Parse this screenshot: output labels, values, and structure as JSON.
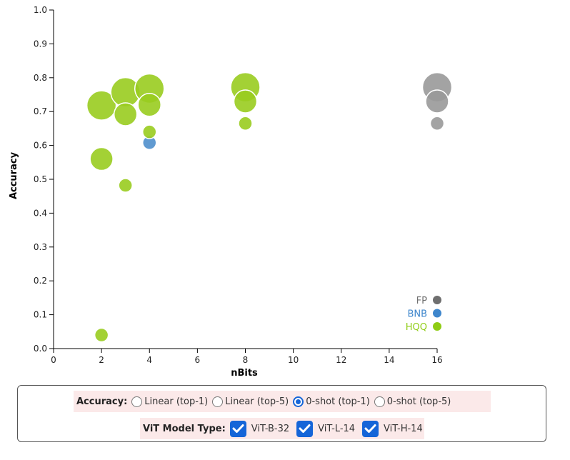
{
  "chart_data": {
    "type": "scatter",
    "xlabel": "nBits",
    "ylabel": "Accuracy",
    "xlim": [
      0,
      16
    ],
    "ylim": [
      0,
      1.0
    ],
    "x_ticks": [
      "0",
      "2",
      "4",
      "6",
      "8",
      "10",
      "12",
      "14",
      "16"
    ],
    "y_ticks": [
      "0.0",
      "0.1",
      "0.2",
      "0.3",
      "0.4",
      "0.5",
      "0.6",
      "0.7",
      "0.8",
      "0.9",
      "1.0"
    ],
    "series": [
      {
        "name": "FP",
        "color": "#999999",
        "legend_color": "#6f6f6f",
        "points": [
          {
            "x": 16,
            "y": 0.665,
            "size": 1
          },
          {
            "x": 16,
            "y": 0.73,
            "size": 2
          },
          {
            "x": 16,
            "y": 0.772,
            "size": 3
          }
        ]
      },
      {
        "name": "BNB",
        "color": "#4f8fcc",
        "legend_color": "#3e86cc",
        "points": [
          {
            "x": 4,
            "y": 0.608,
            "size": 1
          }
        ]
      },
      {
        "name": "HQQ",
        "color": "#99cc1f",
        "legend_color": "#8fcc14",
        "points": [
          {
            "x": 2,
            "y": 0.04,
            "size": 1
          },
          {
            "x": 2,
            "y": 0.56,
            "size": 2
          },
          {
            "x": 2,
            "y": 0.718,
            "size": 3
          },
          {
            "x": 3,
            "y": 0.482,
            "size": 1
          },
          {
            "x": 3,
            "y": 0.692,
            "size": 2
          },
          {
            "x": 3,
            "y": 0.757,
            "size": 3
          },
          {
            "x": 4,
            "y": 0.64,
            "size": 1
          },
          {
            "x": 4,
            "y": 0.72,
            "size": 2
          },
          {
            "x": 4,
            "y": 0.768,
            "size": 3
          },
          {
            "x": 8,
            "y": 0.665,
            "size": 1
          },
          {
            "x": 8,
            "y": 0.73,
            "size": 2
          },
          {
            "x": 8,
            "y": 0.772,
            "size": 3
          }
        ]
      }
    ],
    "legend": [
      "FP",
      "BNB",
      "HQQ"
    ]
  },
  "controls": {
    "accuracy_label": "Accuracy:",
    "accuracy_options": [
      {
        "label": "Linear (top-1)",
        "checked": false
      },
      {
        "label": "Linear (top-5)",
        "checked": false
      },
      {
        "label": "0-shot (top-1)",
        "checked": true
      },
      {
        "label": "0-shot (top-5)",
        "checked": false
      }
    ],
    "vit_label": "ViT Model Type:",
    "vit_options": [
      {
        "label": "ViT-B-32",
        "checked": true
      },
      {
        "label": "ViT-L-14",
        "checked": true
      },
      {
        "label": "ViT-H-14",
        "checked": true
      }
    ]
  }
}
